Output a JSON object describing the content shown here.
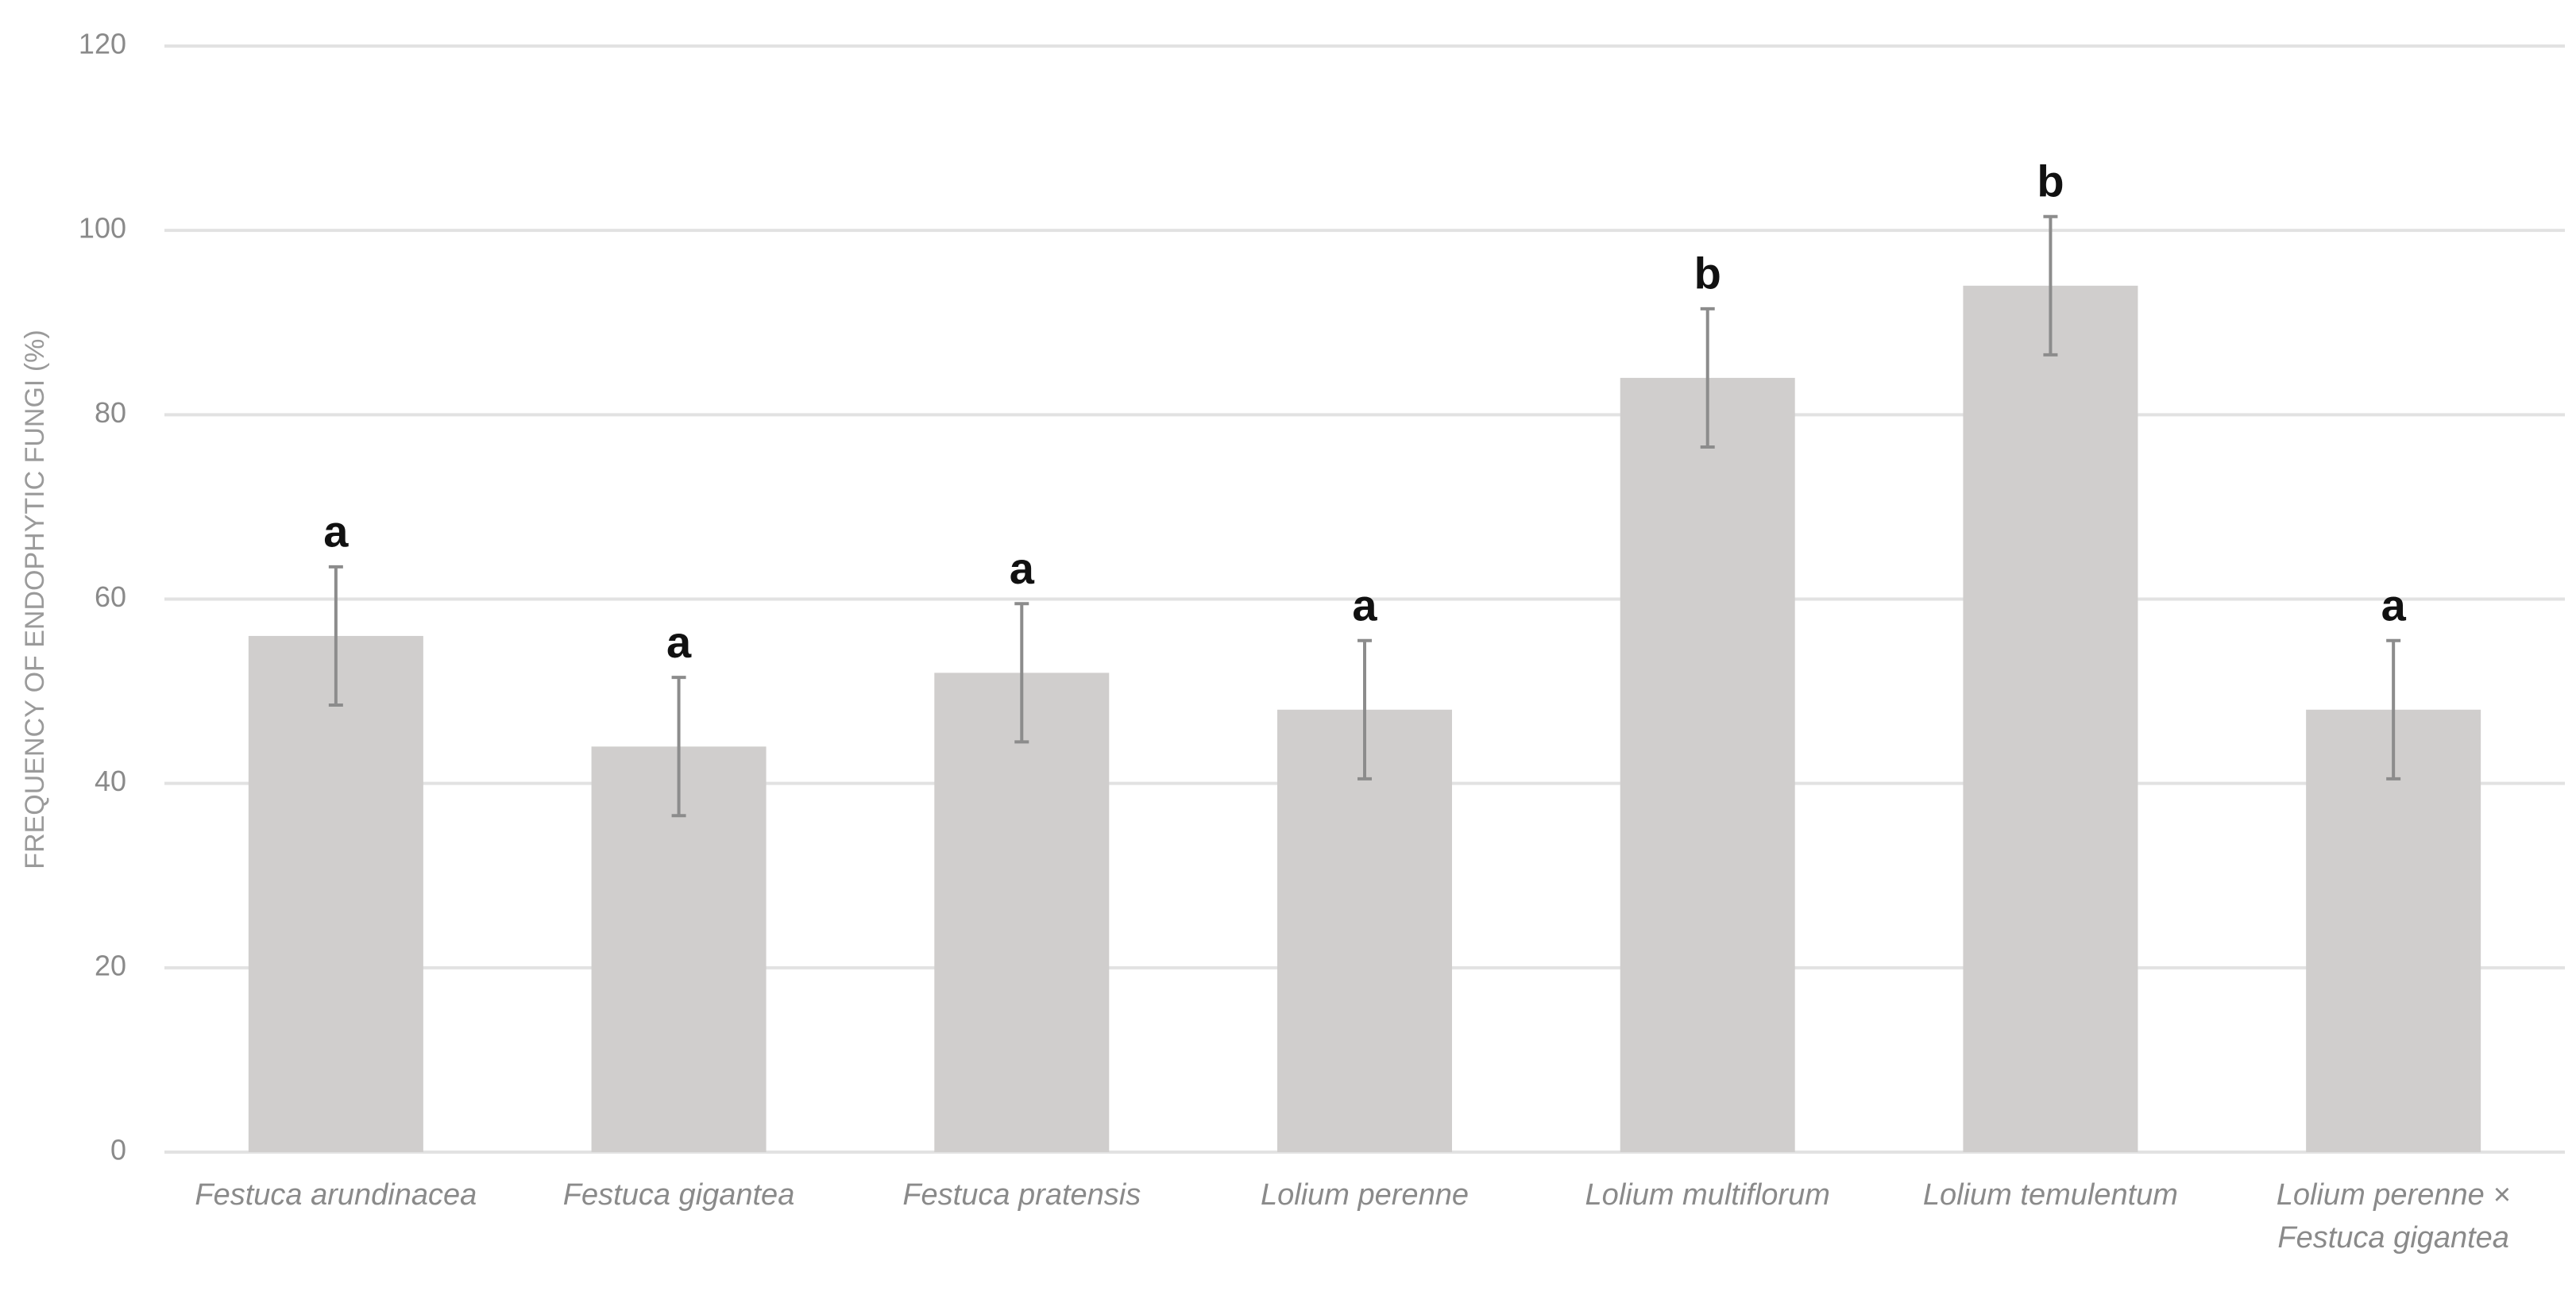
{
  "chart_data": {
    "type": "bar",
    "y_axis_label": "FREQUENCY OF ENDOPHYTIC FUNGI (%)",
    "categories": [
      "Festuca arundinacea",
      "Festuca gigantea",
      "Festuca pratensis",
      "Lolium perenne",
      "Lolium multiflorum",
      "Lolium temulentum",
      "Lolium perenne × Festuca gigantea"
    ],
    "values": [
      56,
      44,
      52,
      48,
      84,
      94,
      48
    ],
    "errors": [
      7.5,
      7.5,
      7.5,
      7.5,
      7.5,
      7.5,
      7.5
    ],
    "significance_letters": [
      "a",
      "a",
      "a",
      "a",
      "b",
      "b",
      "a"
    ],
    "color": "#d0cecd",
    "error_color": "#8c8c8c",
    "ylim": [
      0,
      120
    ],
    "yticks": [
      0,
      20,
      40,
      60,
      80,
      100,
      120
    ],
    "grid": true
  }
}
